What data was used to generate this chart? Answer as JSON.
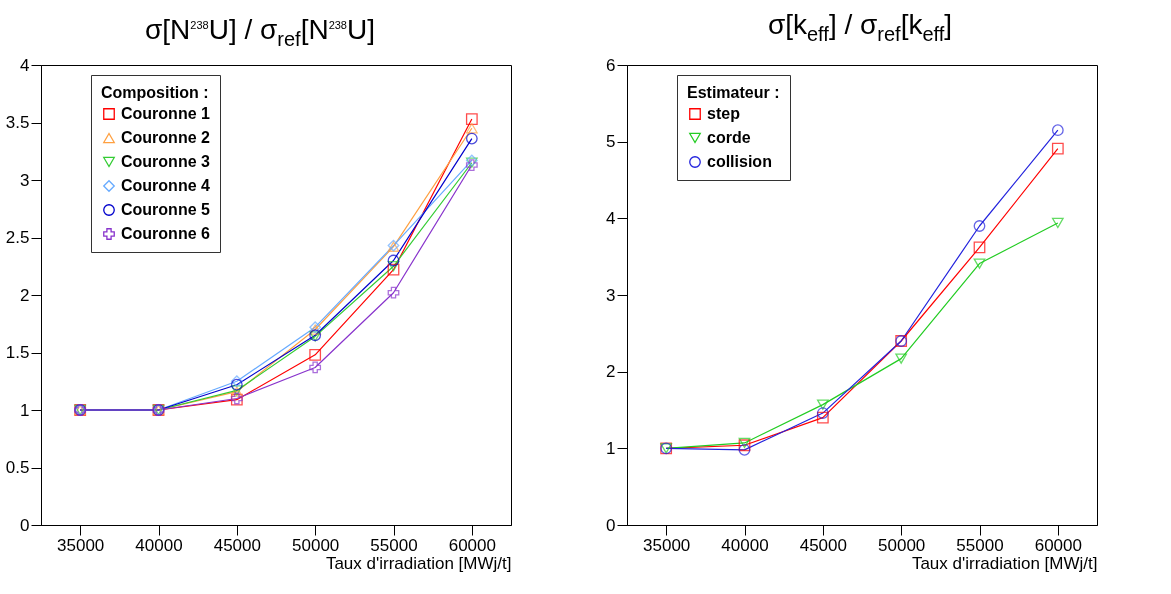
{
  "chart_data": [
    {
      "type": "line",
      "title": "σ[N$^{238}$U] / σ$_{ref}$[N$^{238}$U]",
      "xlabel": "Taux d'irradiation [MWj/t]",
      "legend_title": "Composition :",
      "legend": "top left",
      "grid": false,
      "x": [
        35000,
        40000,
        45000,
        50000,
        55000,
        60000
      ],
      "xlim": [
        32500,
        62500
      ],
      "xticks": [
        35000,
        40000,
        45000,
        50000,
        55000,
        60000
      ],
      "ylim": [
        0,
        4
      ],
      "yticks": [
        0,
        0.5,
        1,
        1.5,
        2,
        2.5,
        3,
        3.5,
        4
      ],
      "series": [
        {
          "name": "Couronne 1",
          "color": "#ff0000",
          "marker": "square",
          "values": [
            1,
            1,
            1.09,
            1.48,
            2.22,
            3.53
          ]
        },
        {
          "name": "Couronne 2",
          "color": "#ffa040",
          "marker": "triangle",
          "values": [
            1,
            1,
            1.16,
            1.7,
            2.42,
            3.45
          ]
        },
        {
          "name": "Couronne 3",
          "color": "#33cc33",
          "marker": "triangle-down",
          "values": [
            1,
            1,
            1.17,
            1.64,
            2.25,
            3.15
          ]
        },
        {
          "name": "Couronne 4",
          "color": "#66aaff",
          "marker": "diamond",
          "values": [
            1,
            1,
            1.25,
            1.72,
            2.43,
            3.17
          ]
        },
        {
          "name": "Couronne 5",
          "color": "#0000cc",
          "marker": "circle",
          "values": [
            1,
            1,
            1.22,
            1.65,
            2.3,
            3.36
          ]
        },
        {
          "name": "Couronne 6",
          "color": "#8833cc",
          "marker": "cross",
          "values": [
            1,
            1,
            1.1,
            1.37,
            2.02,
            3.13
          ]
        }
      ]
    },
    {
      "type": "line",
      "title": "σ[k$_{eff}$] / σ$_{ref}$[k$_{eff}$]",
      "xlabel": "Taux d'irradiation [MWj/t]",
      "legend_title": "Estimateur :",
      "legend": "top left",
      "grid": false,
      "x": [
        35000,
        40000,
        45000,
        50000,
        55000,
        60000
      ],
      "xlim": [
        32500,
        62500
      ],
      "xticks": [
        35000,
        40000,
        45000,
        50000,
        55000,
        60000
      ],
      "ylim": [
        0,
        6
      ],
      "yticks": [
        0,
        1,
        2,
        3,
        4,
        5,
        6
      ],
      "series": [
        {
          "name": "step",
          "color": "#ff0000",
          "marker": "square",
          "values": [
            1,
            1.04,
            1.4,
            2.4,
            3.62,
            4.91
          ]
        },
        {
          "name": "corde",
          "color": "#22cc22",
          "marker": "triangle-down",
          "values": [
            1,
            1.07,
            1.57,
            2.17,
            3.41,
            3.94
          ]
        },
        {
          "name": "collision",
          "color": "#2222dd",
          "marker": "circle",
          "values": [
            1,
            0.98,
            1.46,
            2.4,
            3.9,
            5.15
          ]
        }
      ]
    }
  ]
}
